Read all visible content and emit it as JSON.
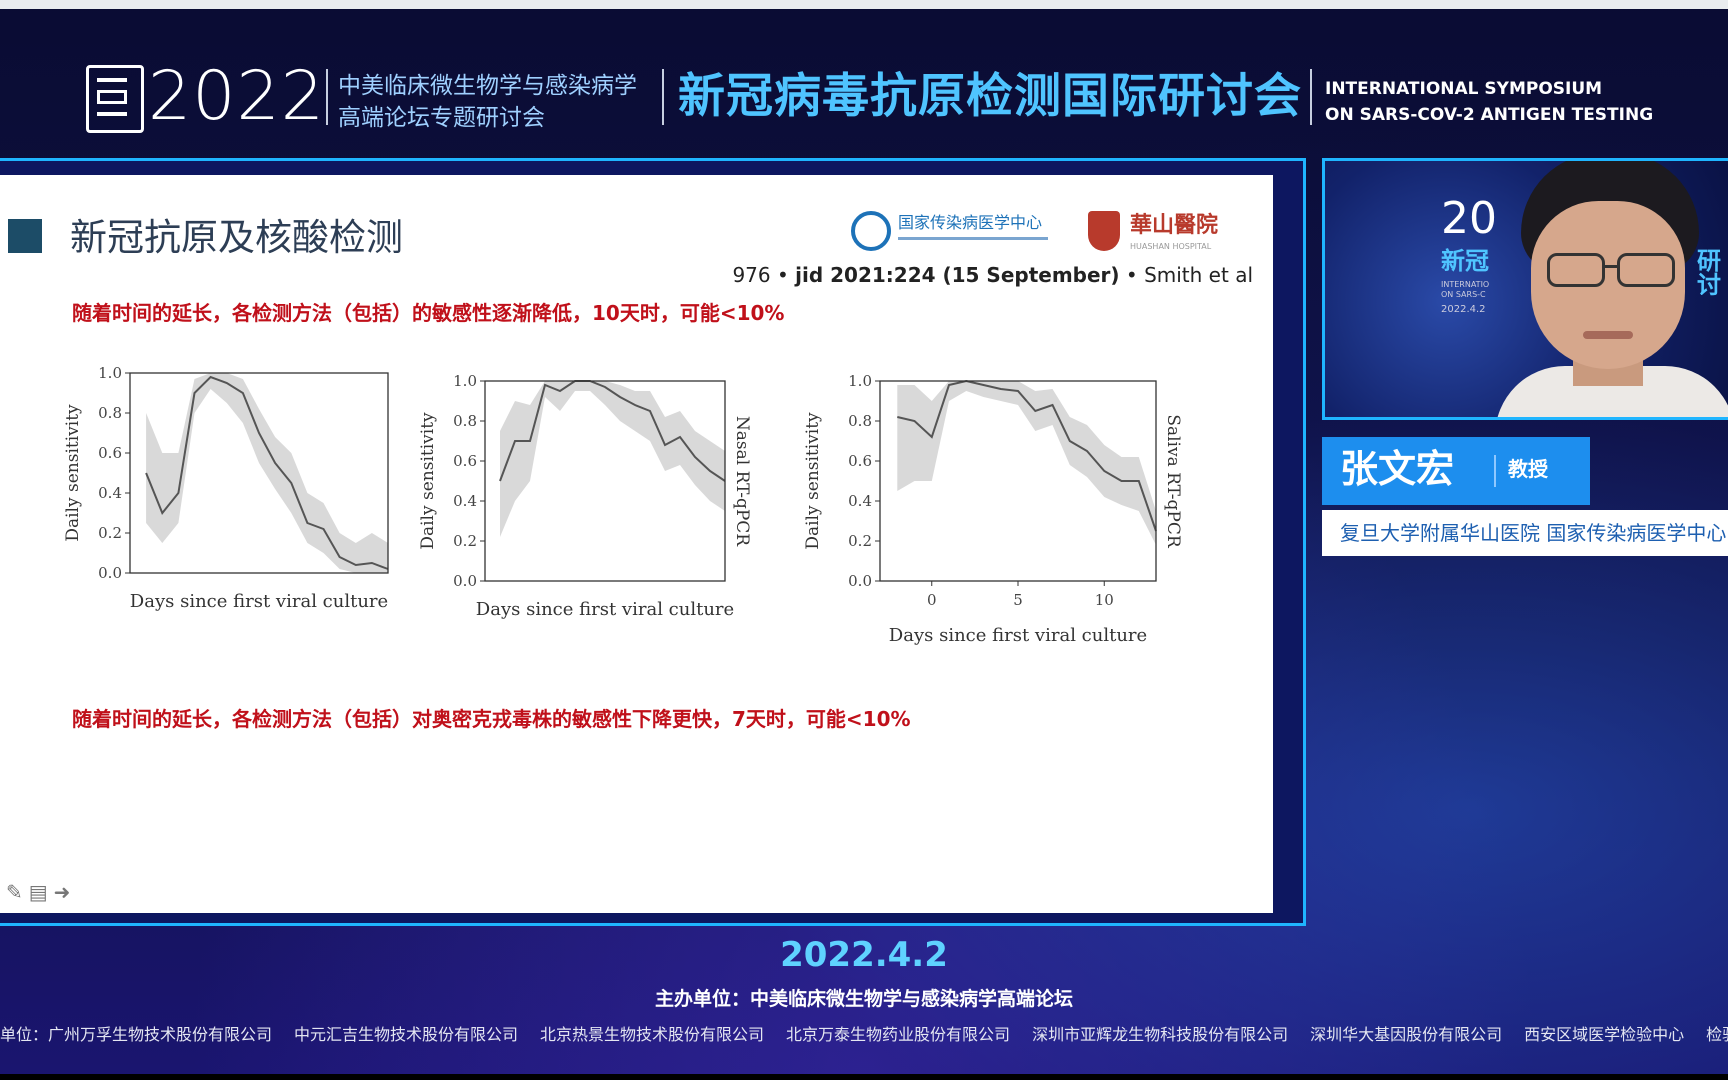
{
  "header": {
    "year": "2022",
    "forum_line1": "中美临床微生物学与感染病学",
    "forum_line2": "高端论坛专题研讨会",
    "symposium_cn": "新冠病毒抗原检测国际研讨会",
    "symposium_en_line1": "INTERNATIONAL SYMPOSIUM",
    "symposium_en_line2": "ON SARS-COV-2 ANTIGEN TESTING"
  },
  "slide": {
    "title": "新冠抗原及核酸检测",
    "institution1": "国家传染病医学中心",
    "institution2": "華山醫院",
    "institution2_sub": "HUASHAN HOSPITAL",
    "citation_pre": "976 • ",
    "citation_bold": "jid 2021:224 (15 September)",
    "citation_post": " • Smith et al",
    "note_top": "随着时间的延长，各检测方法（包括）的敏感性逐渐降低，10天时，可能<10%",
    "note_bottom": "随着时间的延长，各检测方法（包括）对奥密克戎毒株的敏感性下降更快，7天时，可能<10%"
  },
  "chart_data": [
    {
      "type": "line",
      "ylabel": "Daily sensitivity",
      "xlabel": "Days since first viral culture",
      "right_label": "",
      "ylim": [
        0,
        1.0
      ],
      "yticks": [
        "0.0",
        "0.2",
        "0.4",
        "0.6",
        "0.8",
        "1.0"
      ],
      "xlim": [
        -3,
        13
      ],
      "xticks": [],
      "x": [
        -2,
        -1,
        0,
        1,
        2,
        3,
        4,
        5,
        6,
        7,
        8,
        9,
        10,
        11,
        12,
        13
      ],
      "series": [
        {
          "values": [
            0.5,
            0.3,
            0.4,
            0.9,
            0.98,
            0.95,
            0.9,
            0.7,
            0.55,
            0.45,
            0.25,
            0.22,
            0.08,
            0.04,
            0.05,
            0.02
          ],
          "lower": [
            0.25,
            0.15,
            0.25,
            0.8,
            0.92,
            0.85,
            0.75,
            0.55,
            0.42,
            0.3,
            0.15,
            0.1,
            0.02,
            0.0,
            0.0,
            0.0
          ],
          "upper": [
            0.8,
            0.6,
            0.6,
            0.97,
            1.0,
            1.0,
            0.97,
            0.82,
            0.68,
            0.6,
            0.4,
            0.35,
            0.2,
            0.15,
            0.2,
            0.15
          ]
        }
      ]
    },
    {
      "type": "line",
      "ylabel": "Daily sensitivity",
      "xlabel": "Days since first viral culture",
      "right_label": "Nasal RT-qPCR",
      "ylim": [
        0,
        1.0
      ],
      "yticks": [
        "0.0",
        "0.2",
        "0.4",
        "0.6",
        "0.8",
        "1.0"
      ],
      "xlim": [
        -3,
        13
      ],
      "xticks": [],
      "x": [
        -2,
        -1,
        0,
        1,
        2,
        3,
        4,
        5,
        6,
        7,
        8,
        9,
        10,
        11,
        12,
        13
      ],
      "series": [
        {
          "values": [
            0.5,
            0.7,
            0.7,
            0.98,
            0.95,
            1.0,
            1.0,
            0.97,
            0.92,
            0.88,
            0.85,
            0.68,
            0.72,
            0.62,
            0.55,
            0.5
          ],
          "lower": [
            0.22,
            0.4,
            0.5,
            0.92,
            0.85,
            0.95,
            0.95,
            0.88,
            0.8,
            0.75,
            0.7,
            0.55,
            0.58,
            0.48,
            0.4,
            0.35
          ],
          "upper": [
            0.75,
            0.9,
            0.88,
            1.0,
            1.0,
            1.0,
            1.0,
            1.0,
            0.98,
            0.95,
            0.95,
            0.82,
            0.85,
            0.75,
            0.7,
            0.65
          ]
        }
      ]
    },
    {
      "type": "line",
      "ylabel": "Daily sensitivity",
      "xlabel": "Days since first viral culture",
      "right_label": "Saliva RT-qPCR",
      "ylim": [
        0,
        1.0
      ],
      "yticks": [
        "0.0",
        "0.2",
        "0.4",
        "0.6",
        "0.8",
        "1.0"
      ],
      "xlim": [
        -3,
        13
      ],
      "xticks": [
        "0",
        "5",
        "10"
      ],
      "x": [
        -2,
        -1,
        0,
        1,
        2,
        3,
        4,
        5,
        6,
        7,
        8,
        9,
        10,
        11,
        12,
        13
      ],
      "series": [
        {
          "values": [
            0.82,
            0.8,
            0.72,
            0.98,
            1.0,
            0.98,
            0.96,
            0.95,
            0.85,
            0.88,
            0.7,
            0.65,
            0.55,
            0.5,
            0.5,
            0.25
          ],
          "lower": [
            0.45,
            0.5,
            0.5,
            0.9,
            0.95,
            0.92,
            0.9,
            0.88,
            0.75,
            0.78,
            0.58,
            0.52,
            0.42,
            0.38,
            0.35,
            0.18
          ],
          "upper": [
            0.98,
            0.98,
            0.9,
            1.0,
            1.0,
            1.0,
            1.0,
            1.0,
            0.95,
            0.96,
            0.82,
            0.78,
            0.68,
            0.62,
            0.62,
            0.35
          ]
        }
      ]
    }
  ],
  "video": {
    "bg_number": "20",
    "bg_title": "新冠",
    "bg_sub1": "INTERNATIO",
    "bg_sub2": "ON SARS-C",
    "bg_date": "2022.4.2",
    "bg_right": "研讨"
  },
  "speaker": {
    "name": "张文宏",
    "title": "教授",
    "affiliation": "复旦大学附属华山医院  国家传染病医学中心"
  },
  "footer": {
    "date": "2022.4.2",
    "organizer": "主办单位：中美临床微生物学与感染病学高端论坛",
    "sponsors": [
      "单位：广州万孚生物技术股份有限公司",
      "中元汇吉生物技术股份有限公司",
      "北京热景生物技术股份有限公司",
      "北京万泰生物药业股份有限公司",
      "深圳市亚辉龙生物科技股份有限公司",
      "深圳华大基因股份有限公司",
      "西安区域医学检验中心",
      "检验"
    ]
  },
  "colors": {
    "accent_cyan": "#1fb5ff",
    "note_red": "#c0101a",
    "name_card_blue": "#1d8eee"
  }
}
